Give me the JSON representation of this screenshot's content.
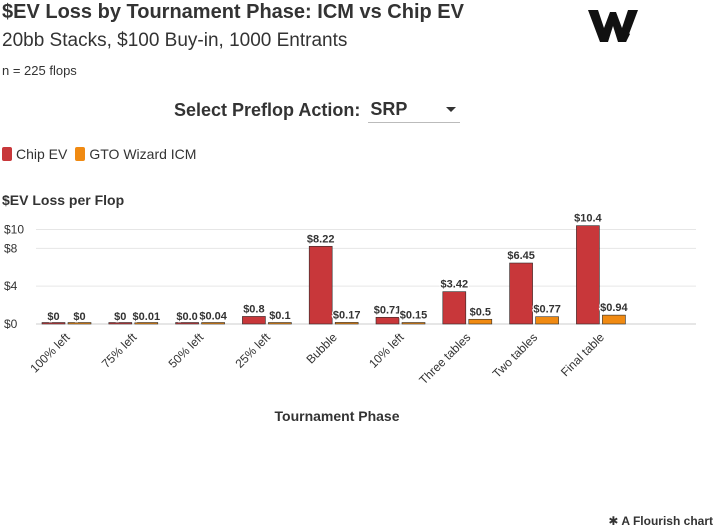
{
  "header": {
    "title": "$EV Loss by Tournament Phase: ICM vs Chip EV",
    "subtitle": "20bb Stacks, $100 Buy-in, 1000 Entrants",
    "note": "n = 225 flops"
  },
  "selector": {
    "label": "Select Preflop Action:",
    "value": "SRP"
  },
  "footer": {
    "text": "A Flourish chart",
    "icon": "flourish-asterisk-icon"
  },
  "logo": {
    "icon": "gto-wizard-w-logo"
  },
  "colors": {
    "chip_ev": "#c8373a",
    "icm": "#f08a12",
    "grid": "#e6e6e6"
  },
  "chart_data": {
    "type": "bar",
    "xlabel": "Tournament Phase",
    "ylabel": "$EV Loss per Flop",
    "ylim": [
      0,
      11
    ],
    "yticks": [
      0,
      4,
      8,
      10
    ],
    "ytick_labels": [
      "$0",
      "$4",
      "$8",
      "$10"
    ],
    "grid": true,
    "legend_position": "top-left",
    "categories": [
      "100% left",
      "75% left",
      "50% left",
      "25% left",
      "Bubble",
      "10% left",
      "Three tables",
      "Two tables",
      "Final table"
    ],
    "series": [
      {
        "name": "Chip EV",
        "color": "#c8373a",
        "values": [
          0,
          0,
          0.0,
          0.8,
          8.22,
          0.71,
          3.42,
          6.45,
          10.4
        ],
        "labels": [
          "$0",
          "$0",
          "$0.0",
          "$0.8",
          "$8.22",
          "$0.71",
          "$3.42",
          "$6.45",
          "$10.4"
        ]
      },
      {
        "name": "GTO Wizard ICM",
        "color": "#f08a12",
        "values": [
          0,
          0.01,
          0.04,
          0.1,
          0.17,
          0.15,
          0.5,
          0.77,
          0.94
        ],
        "labels": [
          "$0",
          "$0.01",
          "$0.04",
          "$0.1",
          "$0.17",
          "$0.15",
          "$0.5",
          "$0.77",
          "$0.94"
        ]
      }
    ]
  }
}
